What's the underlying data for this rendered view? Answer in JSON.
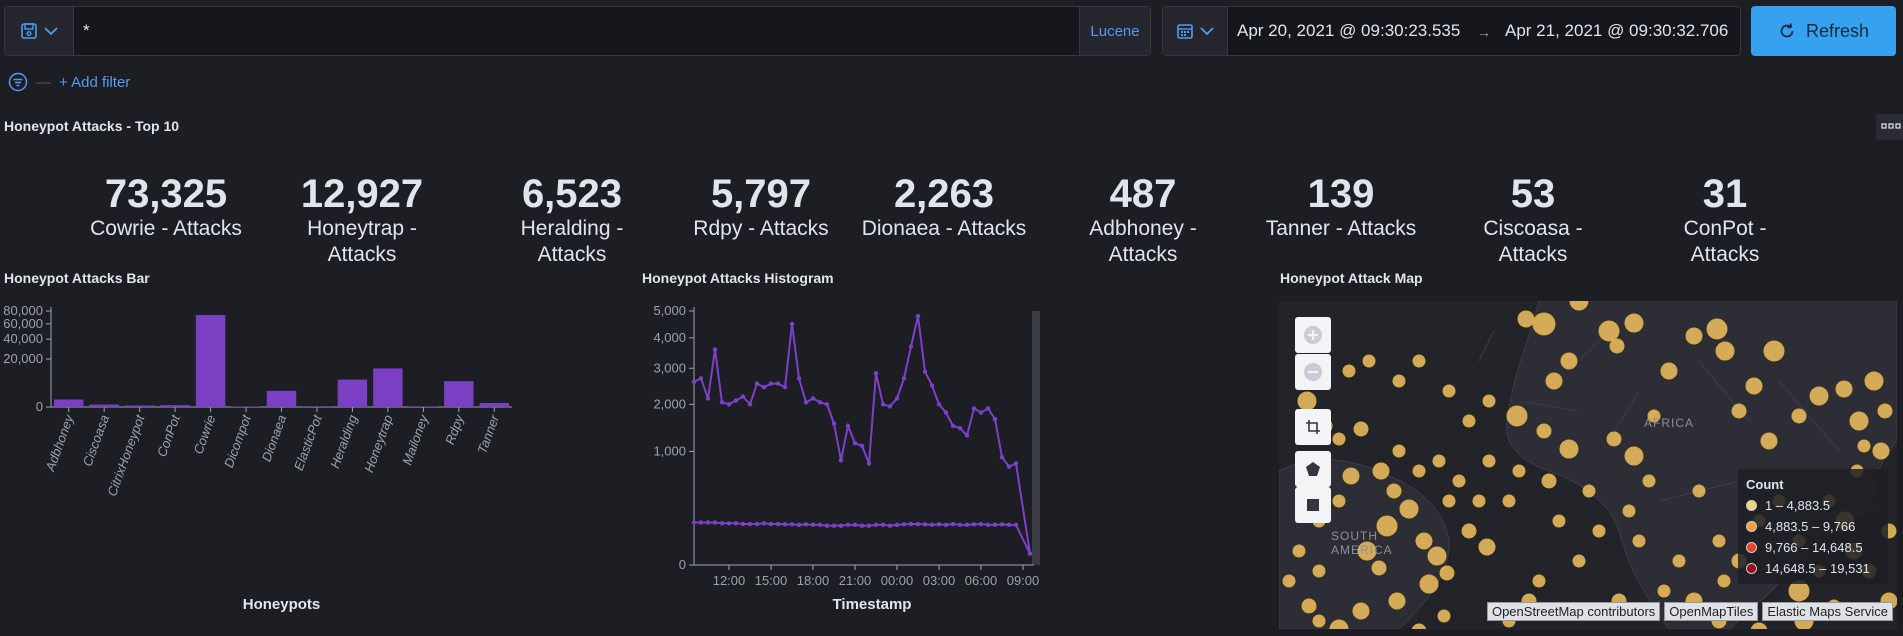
{
  "query": {
    "value": "*",
    "language": "Lucene"
  },
  "time": {
    "start": "Apr 20, 2021 @ 09:30:23.535",
    "arrow": "→",
    "end": "Apr 21, 2021 @ 09:30:32.706"
  },
  "refresh_label": "Refresh",
  "add_filter": "+ Add filter",
  "colors": {
    "accent": "#36a2ef",
    "bar": "#7b3fc4",
    "line": "#7c40c9",
    "marker": "#f1c15f"
  },
  "icons": {
    "saved": "save-icon",
    "calendar": "calendar-icon",
    "refresh": "refresh-icon",
    "filter": "filter-icon"
  },
  "top10": {
    "title": "Honeypot Attacks - Top 10",
    "metrics": [
      {
        "value": "73,325",
        "label": "Cowrie - Attacks"
      },
      {
        "value": "12,927",
        "label": "Honeytrap - Attacks"
      },
      {
        "value": "6,523",
        "label": "Heralding - Attacks"
      },
      {
        "value": "5,797",
        "label": "Rdpy - Attacks"
      },
      {
        "value": "2,263",
        "label": "Dionaea - Attacks"
      },
      {
        "value": "487",
        "label": "Adbhoney - Attacks"
      },
      {
        "value": "139",
        "label": "Tanner - Attacks"
      },
      {
        "value": "53",
        "label": "Ciscoasa - Attacks"
      },
      {
        "value": "31",
        "label": "ConPot - Attacks"
      }
    ]
  },
  "bar_panel": {
    "title": "Honeypot Attacks Bar"
  },
  "hist_panel": {
    "title": "Honeypot Attacks Histogram"
  },
  "map_panel": {
    "title": "Honeypot Attack Map",
    "labels": {
      "africa": "AFRICA",
      "south_america": "SOUTH AMERICA"
    },
    "legend": {
      "title": "Count",
      "items": [
        {
          "label": "1 – 4,883.5",
          "color": "#f1d57a"
        },
        {
          "label": "4,883.5 – 9,766",
          "color": "#f59c45"
        },
        {
          "label": "9,766 – 14,648.5",
          "color": "#e8452b"
        },
        {
          "label": "14,648.5 – 19,531",
          "color": "#9b0a22"
        }
      ]
    },
    "attribution": [
      "OpenStreetMap contributors",
      "OpenMapTiles",
      "Elastic Maps Service"
    ]
  },
  "chart_data": [
    {
      "type": "bar",
      "title": "Honeypot Attacks Bar",
      "xlabel": "Honeypots",
      "ylabel": "",
      "scale": "sqrt",
      "categories": [
        "Adbhoney",
        "Ciscoasa",
        "CitrixHoneypot",
        "ConPot",
        "Cowrie",
        "Dicompot",
        "Dionaea",
        "ElasticPot",
        "Heralding",
        "Honeytrap",
        "Mailoney",
        "Rdpy",
        "Tanner"
      ],
      "values": [
        487,
        53,
        20,
        31,
        73325,
        2,
        2263,
        5,
        6523,
        12927,
        3,
        5797,
        139
      ],
      "yticks": [
        0,
        20000,
        40000,
        60000,
        80000
      ],
      "ytick_labels": [
        "0",
        "20,000",
        "40,000",
        "60,000",
        "80,000"
      ],
      "ylim": [
        0,
        80000
      ]
    },
    {
      "type": "line",
      "title": "Honeypot Attacks Histogram",
      "xlabel": "Timestamp",
      "scale": "sqrt",
      "ylim": [
        0,
        5000
      ],
      "yticks": [
        0,
        1000,
        2000,
        3000,
        4000,
        5000
      ],
      "ytick_labels": [
        "0",
        "1,000",
        "2,000",
        "3,000",
        "4,000",
        "5,000"
      ],
      "xticks": [
        "12:00",
        "15:00",
        "18:00",
        "21:00",
        "00:00",
        "03:00",
        "06:00",
        "09:00"
      ],
      "series": [
        {
          "values": [
            2600,
            2700,
            2150,
            3600,
            2050,
            2000,
            2100,
            2200,
            2000,
            2550,
            2450,
            2550,
            2550,
            2450,
            4500,
            2700,
            2050,
            2150,
            2050,
            2000,
            1550,
            850,
            1500,
            1150,
            1100,
            800,
            2850,
            2000,
            1950,
            2150,
            2700,
            3700,
            4800,
            2900,
            2500,
            2000,
            1800,
            1500,
            1450,
            1300,
            1900,
            1800,
            1900,
            1650,
            900,
            750,
            800,
            10
          ],
          "x_hours_since_start": [
            0,
            0.5,
            1,
            1.5,
            2,
            2.5,
            3,
            3.5,
            4,
            4.5,
            5,
            5.5,
            6,
            6.5,
            7,
            7.5,
            8,
            8.5,
            9,
            9.5,
            10,
            10.5,
            11,
            11.5,
            12,
            12.5,
            13,
            13.5,
            14,
            14.5,
            15,
            15.5,
            16,
            16.5,
            17,
            17.5,
            18,
            18.5,
            19,
            19.5,
            20,
            20.5,
            21,
            21.5,
            22,
            22.5,
            23,
            24
          ]
        },
        {
          "values": [
            140,
            140,
            140,
            140,
            135,
            135,
            135,
            130,
            130,
            130,
            135,
            130,
            130,
            128,
            128,
            125,
            128,
            125,
            125,
            120,
            120,
            120,
            125,
            125,
            120,
            120,
            125,
            125,
            120,
            125,
            128,
            130,
            130,
            128,
            125,
            128,
            125,
            130,
            125,
            125,
            128,
            130,
            125,
            125,
            128,
            125,
            125,
            10
          ],
          "x_hours_since_start": [
            0,
            0.5,
            1,
            1.5,
            2,
            2.5,
            3,
            3.5,
            4,
            4.5,
            5,
            5.5,
            6,
            6.5,
            7,
            7.5,
            8,
            8.5,
            9,
            9.5,
            10,
            10.5,
            11,
            11.5,
            12,
            12.5,
            13,
            13.5,
            14,
            14.5,
            15,
            15.5,
            16,
            16.5,
            17,
            17.5,
            18,
            18.5,
            19,
            19.5,
            20,
            20.5,
            21,
            21.5,
            22,
            22.5,
            23,
            24
          ]
        }
      ]
    }
  ]
}
